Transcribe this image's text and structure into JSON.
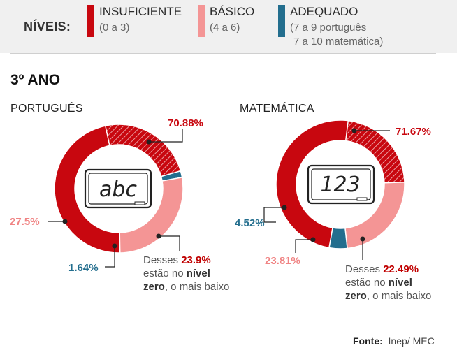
{
  "colors": {
    "insufficient": "#c8070f",
    "basic": "#f49595",
    "adequate": "#236e8e",
    "hatch_line": "#ffffff"
  },
  "legend": {
    "title": "NÍVEIS:",
    "items": [
      {
        "name": "INSUFICIENTE",
        "range": "(0 a 3)",
        "range2": ""
      },
      {
        "name": "BÁSICO",
        "range": "(4 a 6)",
        "range2": ""
      },
      {
        "name": "ADEQUADO",
        "range": "(7 a 9 português",
        "range2": "7 a 10 matemática)"
      }
    ]
  },
  "grade_title": "3º ANO",
  "source": {
    "label": "Fonte:",
    "value": "Inep/ MEC"
  },
  "chart_data": [
    {
      "type": "pie",
      "title": "PORTUGUÊS",
      "board_text": "abc",
      "slices": [
        {
          "level": "INSUFICIENTE",
          "value": 70.88,
          "label": "70.88%",
          "zero_level_part": 23.9
        },
        {
          "level": "ADEQUADO",
          "value": 1.64,
          "label": "1.64%"
        },
        {
          "level": "BÁSICO",
          "value": 27.5,
          "label": "27.5%"
        }
      ],
      "note": {
        "prefix": "Desses",
        "value": "23.9%",
        "line2a": "estão no",
        "line2b": "nível",
        "line3a": "zero",
        "line3b": ", o mais baixo"
      }
    },
    {
      "type": "pie",
      "title": "MATEMÁTICA",
      "board_text": "123",
      "slices": [
        {
          "level": "INSUFICIENTE",
          "value": 71.67,
          "label": "71.67%",
          "zero_level_part": 22.49
        },
        {
          "level": "BÁSICO",
          "value": 23.81,
          "label": "23.81%"
        },
        {
          "level": "ADEQUADO",
          "value": 4.52,
          "label": "4.52%"
        }
      ],
      "note": {
        "prefix": "Desses",
        "value": "22.49%",
        "line2a": "estão no",
        "line2b": "nível",
        "line3a": "zero",
        "line3b": ", o mais baixo"
      }
    }
  ]
}
